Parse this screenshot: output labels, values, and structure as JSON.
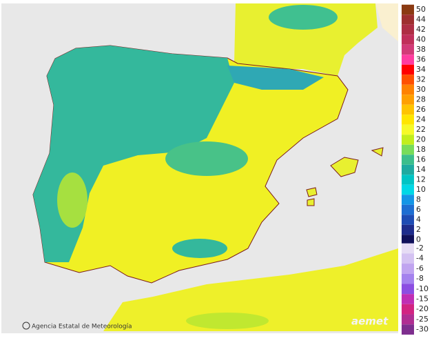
{
  "attribution": "Agencia Estatal de Meteorología",
  "logo": "aemet",
  "legend": {
    "positive": [
      {
        "label": "50",
        "color": "#8b3a12"
      },
      {
        "label": "44",
        "color": "#9e2f2f"
      },
      {
        "label": "42",
        "color": "#ae2e44"
      },
      {
        "label": "40",
        "color": "#c02f5a"
      },
      {
        "label": "38",
        "color": "#d23a78"
      },
      {
        "label": "36",
        "color": "#ff3ca0"
      },
      {
        "label": "34",
        "color": "#ff0000"
      },
      {
        "label": "32",
        "color": "#ff5000"
      },
      {
        "label": "30",
        "color": "#ff8200"
      },
      {
        "label": "28",
        "color": "#ffa000"
      },
      {
        "label": "26",
        "color": "#ffc400"
      },
      {
        "label": "24",
        "color": "#ffe600"
      },
      {
        "label": "22",
        "color": "#f6fa28"
      },
      {
        "label": "20",
        "color": "#c2ee1c"
      },
      {
        "label": "18",
        "color": "#78dc5a"
      },
      {
        "label": "16",
        "color": "#3cbe8c"
      },
      {
        "label": "14",
        "color": "#1eaaa0"
      },
      {
        "label": "12",
        "color": "#00c4c4"
      },
      {
        "label": "10",
        "color": "#00d8e6"
      },
      {
        "label": "8",
        "color": "#1496e6"
      },
      {
        "label": "6",
        "color": "#1e6ed2"
      },
      {
        "label": "4",
        "color": "#1e4cb4"
      },
      {
        "label": "2",
        "color": "#1e2c8c"
      },
      {
        "label": "0",
        "color": "#10105a"
      }
    ],
    "negative": [
      {
        "label": "-2",
        "color": "#e6dcf4"
      },
      {
        "label": "-4",
        "color": "#d4c2f2"
      },
      {
        "label": "-6",
        "color": "#c0a4f0"
      },
      {
        "label": "-8",
        "color": "#a482ee"
      },
      {
        "label": "-10",
        "color": "#8c4ee2"
      },
      {
        "label": "-15",
        "color": "#c02eb4"
      },
      {
        "label": "-20",
        "color": "#d22482"
      },
      {
        "label": "-25",
        "color": "#b02e92"
      },
      {
        "label": "-30",
        "color": "#7e2e8e"
      }
    ]
  }
}
